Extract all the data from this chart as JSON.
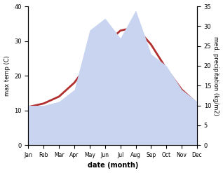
{
  "months": [
    "Jan",
    "Feb",
    "Mar",
    "Apr",
    "May",
    "Jun",
    "Jul",
    "Aug",
    "Sep",
    "Oct",
    "Nov",
    "Dec"
  ],
  "temp": [
    11,
    12,
    14,
    18,
    24,
    29,
    33,
    34,
    29,
    22,
    16,
    12
  ],
  "precip": [
    10,
    10,
    11,
    14,
    29,
    32,
    27,
    34,
    23,
    20,
    14,
    11
  ],
  "temp_ylim": [
    0,
    40
  ],
  "precip_ylim": [
    0,
    35
  ],
  "temp_color": "#b33030",
  "precip_fill_color": "#c8d4f0",
  "xlabel": "date (month)",
  "ylabel_left": "max temp (C)",
  "ylabel_right": "med. precipitation (kg/m2)",
  "background_color": "#ffffff",
  "temp_linewidth": 2.0
}
